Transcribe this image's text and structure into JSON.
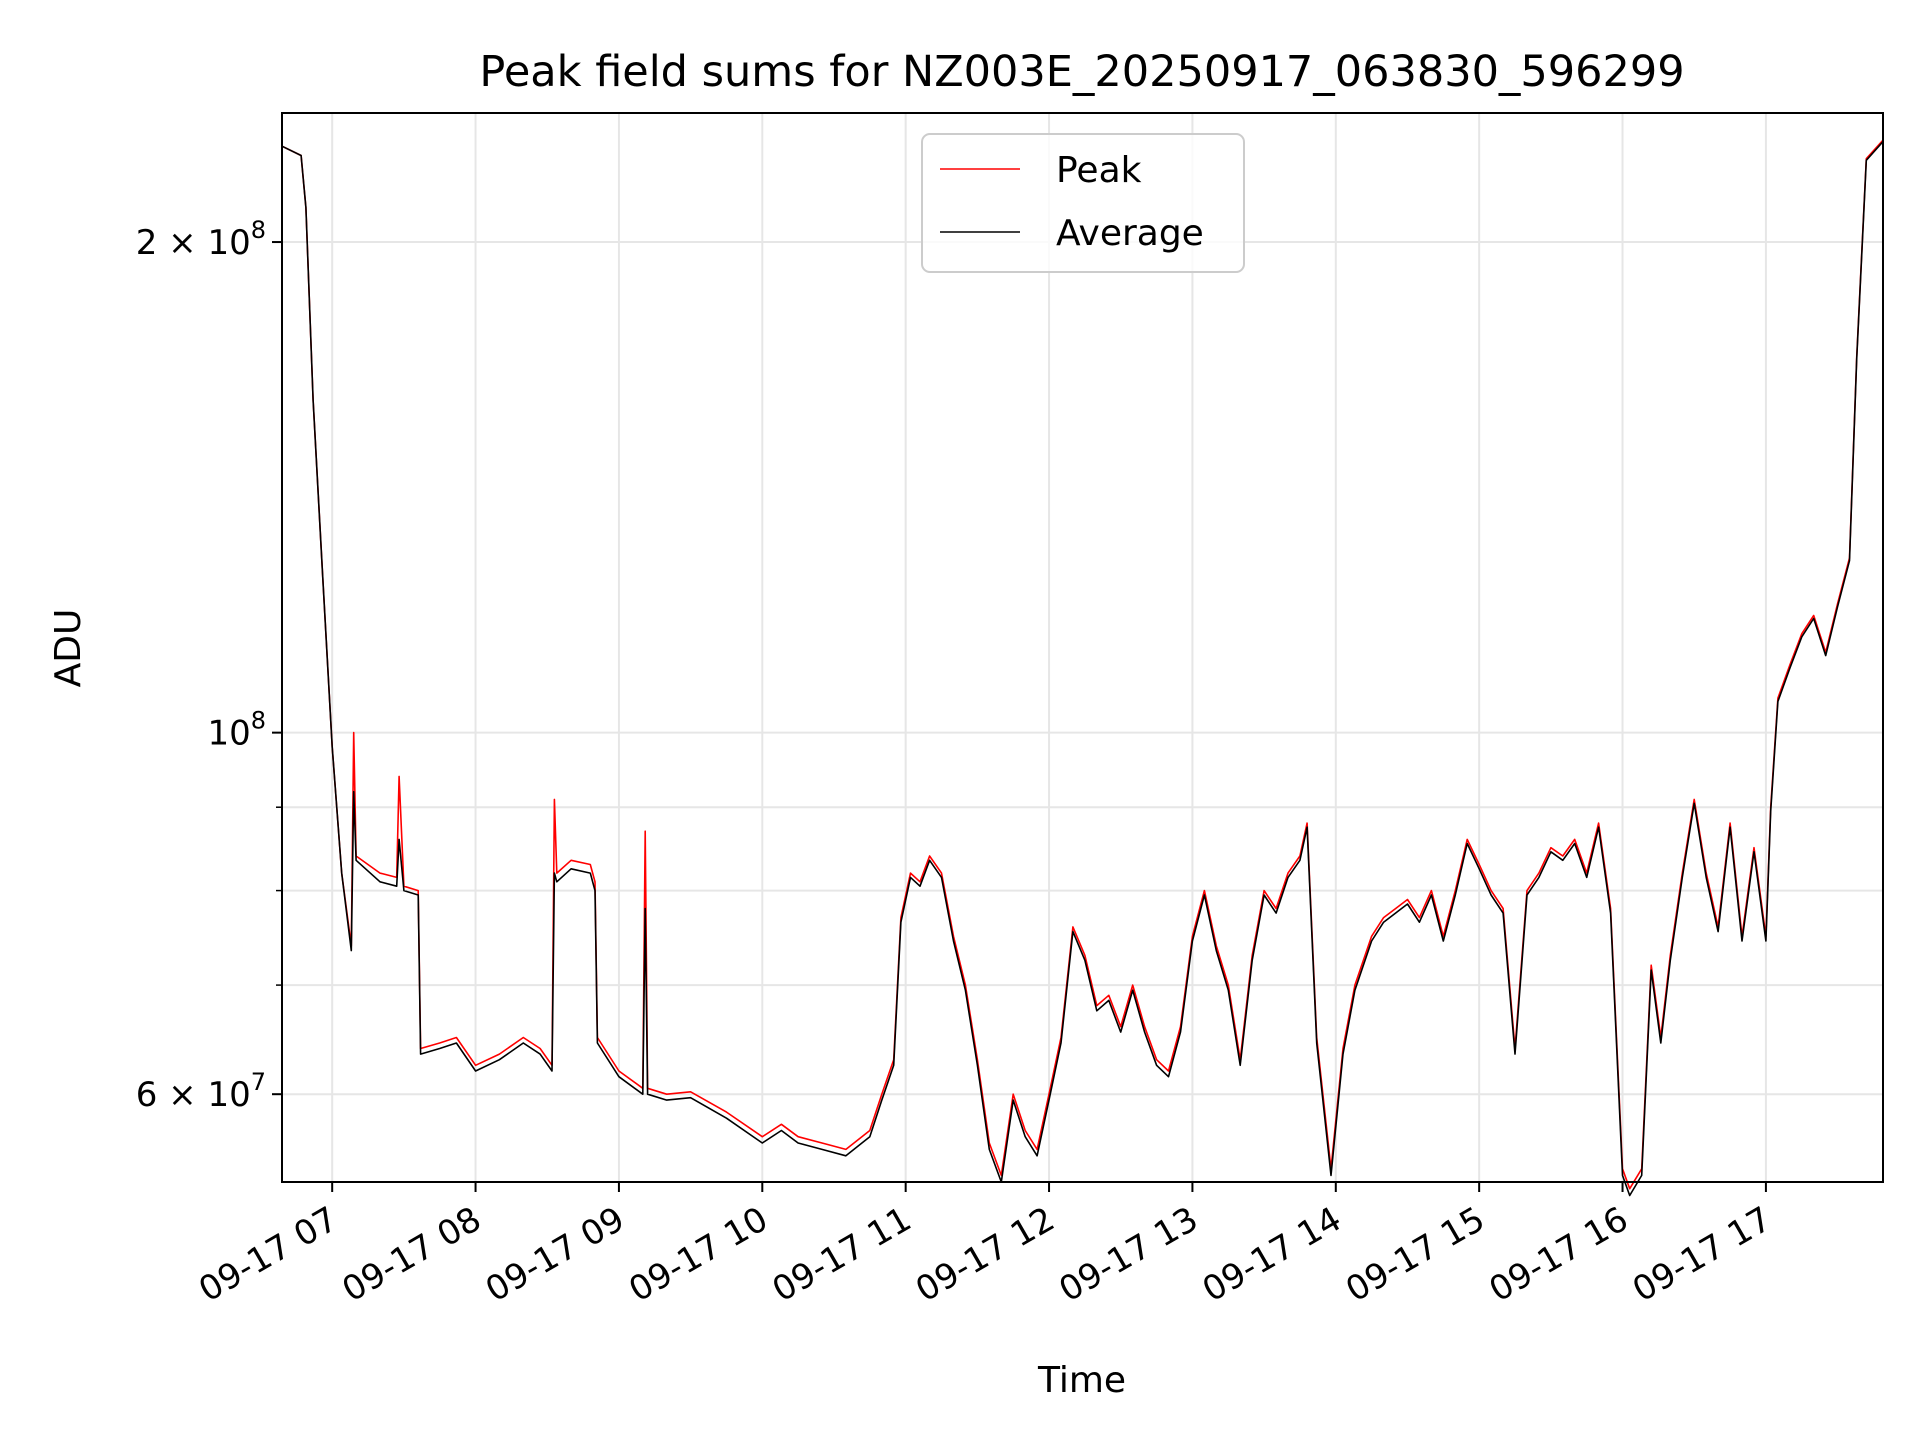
{
  "chart_data": {
    "type": "line",
    "title": "Peak field sums for NZ003E_20250917_063830_596299",
    "xlabel": "Time",
    "ylabel": "ADU",
    "yscale": "log",
    "ylim": [
      53000000,
      240000000
    ],
    "xlim": [
      "2025-09-17T06:39",
      "2025-09-17T17:49"
    ],
    "grid": true,
    "legend_position": "upper center",
    "x_ticks": [
      {
        "time": "2025-09-17T07:00",
        "label": "09-17 07"
      },
      {
        "time": "2025-09-17T08:00",
        "label": "09-17 08"
      },
      {
        "time": "2025-09-17T09:00",
        "label": "09-17 09"
      },
      {
        "time": "2025-09-17T10:00",
        "label": "09-17 10"
      },
      {
        "time": "2025-09-17T11:00",
        "label": "09-17 11"
      },
      {
        "time": "2025-09-17T12:00",
        "label": "09-17 12"
      },
      {
        "time": "2025-09-17T13:00",
        "label": "09-17 13"
      },
      {
        "time": "2025-09-17T14:00",
        "label": "09-17 14"
      },
      {
        "time": "2025-09-17T15:00",
        "label": "09-17 15"
      },
      {
        "time": "2025-09-17T16:00",
        "label": "09-17 16"
      },
      {
        "time": "2025-09-17T17:00",
        "label": "09-17 17"
      }
    ],
    "y_ticks": [
      {
        "value": 60000000,
        "base": "6 × 10",
        "exp": "7"
      },
      {
        "value": 100000000,
        "base": "10",
        "exp": "8"
      },
      {
        "value": 200000000,
        "base": "2 × 10",
        "exp": "8"
      }
    ],
    "y_minor_ticks": [
      70000000,
      80000000,
      90000000
    ],
    "series": [
      {
        "name": "Peak",
        "color": "#ff0000",
        "points": [
          [
            "06:39",
            229000000
          ],
          [
            "06:47",
            226000000
          ],
          [
            "06:49",
            210000000
          ],
          [
            "06:52",
            160000000
          ],
          [
            "06:56",
            125000000
          ],
          [
            "07:00",
            98000000
          ],
          [
            "07:04",
            82000000
          ],
          [
            "07:08",
            74000000
          ],
          [
            "07:09",
            100000000
          ],
          [
            "07:10",
            84000000
          ],
          [
            "07:20",
            82000000
          ],
          [
            "07:27",
            81500000
          ],
          [
            "07:28",
            94000000
          ],
          [
            "07:30",
            80500000
          ],
          [
            "07:36",
            80000000
          ],
          [
            "07:37",
            64000000
          ],
          [
            "07:45",
            64500000
          ],
          [
            "07:52",
            65000000
          ],
          [
            "08:00",
            62500000
          ],
          [
            "08:10",
            63500000
          ],
          [
            "08:20",
            65000000
          ],
          [
            "08:27",
            64000000
          ],
          [
            "08:32",
            62500000
          ],
          [
            "08:33",
            91000000
          ],
          [
            "08:34",
            82000000
          ],
          [
            "08:40",
            83500000
          ],
          [
            "08:48",
            83000000
          ],
          [
            "08:50",
            81000000
          ],
          [
            "08:51",
            65000000
          ],
          [
            "09:00",
            62000000
          ],
          [
            "09:10",
            60500000
          ],
          [
            "09:11",
            87000000
          ],
          [
            "09:12",
            60500000
          ],
          [
            "09:20",
            60000000
          ],
          [
            "09:30",
            60200000
          ],
          [
            "09:45",
            58500000
          ],
          [
            "10:00",
            56500000
          ],
          [
            "10:08",
            57500000
          ],
          [
            "10:15",
            56500000
          ],
          [
            "10:25",
            56000000
          ],
          [
            "10:35",
            55500000
          ],
          [
            "10:45",
            57000000
          ],
          [
            "10:50",
            60000000
          ],
          [
            "10:55",
            63000000
          ],
          [
            "10:58",
            77000000
          ],
          [
            "11:02",
            82000000
          ],
          [
            "11:06",
            81000000
          ],
          [
            "11:10",
            84000000
          ],
          [
            "11:15",
            82000000
          ],
          [
            "11:20",
            75000000
          ],
          [
            "11:25",
            70000000
          ],
          [
            "11:30",
            63000000
          ],
          [
            "11:35",
            56000000
          ],
          [
            "11:40",
            53500000
          ],
          [
            "11:45",
            60000000
          ],
          [
            "11:50",
            57000000
          ],
          [
            "11:55",
            55500000
          ],
          [
            "12:00",
            60000000
          ],
          [
            "12:05",
            65000000
          ],
          [
            "12:10",
            76000000
          ],
          [
            "12:15",
            73000000
          ],
          [
            "12:20",
            68000000
          ],
          [
            "12:25",
            69000000
          ],
          [
            "12:30",
            66000000
          ],
          [
            "12:35",
            70000000
          ],
          [
            "12:40",
            66000000
          ],
          [
            "12:45",
            63000000
          ],
          [
            "12:50",
            62000000
          ],
          [
            "12:55",
            66000000
          ],
          [
            "13:00",
            75000000
          ],
          [
            "13:05",
            80000000
          ],
          [
            "13:10",
            74000000
          ],
          [
            "13:15",
            70000000
          ],
          [
            "13:20",
            63000000
          ],
          [
            "13:25",
            73000000
          ],
          [
            "13:30",
            80000000
          ],
          [
            "13:35",
            78000000
          ],
          [
            "13:40",
            82000000
          ],
          [
            "13:45",
            84000000
          ],
          [
            "13:48",
            88000000
          ],
          [
            "13:52",
            65000000
          ],
          [
            "13:58",
            54000000
          ],
          [
            "14:03",
            64000000
          ],
          [
            "14:08",
            70000000
          ],
          [
            "14:15",
            75000000
          ],
          [
            "14:20",
            77000000
          ],
          [
            "14:30",
            79000000
          ],
          [
            "14:35",
            77000000
          ],
          [
            "14:40",
            80000000
          ],
          [
            "14:45",
            75000000
          ],
          [
            "14:50",
            80000000
          ],
          [
            "14:55",
            86000000
          ],
          [
            "15:00",
            83000000
          ],
          [
            "15:05",
            80000000
          ],
          [
            "15:10",
            78000000
          ],
          [
            "15:15",
            64000000
          ],
          [
            "15:20",
            80000000
          ],
          [
            "15:25",
            82000000
          ],
          [
            "15:30",
            85000000
          ],
          [
            "15:35",
            84000000
          ],
          [
            "15:40",
            86000000
          ],
          [
            "15:45",
            82000000
          ],
          [
            "15:50",
            88000000
          ],
          [
            "15:55",
            78000000
          ],
          [
            "16:00",
            54000000
          ],
          [
            "16:03",
            52500000
          ],
          [
            "16:08",
            54000000
          ],
          [
            "16:12",
            72000000
          ],
          [
            "16:16",
            65000000
          ],
          [
            "16:20",
            73000000
          ],
          [
            "16:25",
            82000000
          ],
          [
            "16:30",
            91000000
          ],
          [
            "16:35",
            82000000
          ],
          [
            "16:40",
            76000000
          ],
          [
            "16:45",
            88000000
          ],
          [
            "16:50",
            75000000
          ],
          [
            "16:55",
            85000000
          ],
          [
            "17:00",
            75000000
          ],
          [
            "17:02",
            90000000
          ],
          [
            "17:05",
            105000000
          ],
          [
            "17:10",
            110000000
          ],
          [
            "17:15",
            115000000
          ],
          [
            "17:20",
            118000000
          ],
          [
            "17:25",
            112000000
          ],
          [
            "17:30",
            120000000
          ],
          [
            "17:35",
            128000000
          ],
          [
            "17:38",
            170000000
          ],
          [
            "17:42",
            225000000
          ],
          [
            "17:49",
            231000000
          ]
        ]
      },
      {
        "name": "Average",
        "color": "#000000",
        "points": [
          [
            "06:39",
            229000000
          ],
          [
            "06:47",
            226000000
          ],
          [
            "06:49",
            210000000
          ],
          [
            "06:52",
            160000000
          ],
          [
            "06:56",
            125000000
          ],
          [
            "07:00",
            98000000
          ],
          [
            "07:04",
            82000000
          ],
          [
            "07:08",
            73500000
          ],
          [
            "07:09",
            92000000
          ],
          [
            "07:10",
            83500000
          ],
          [
            "07:20",
            81000000
          ],
          [
            "07:27",
            80500000
          ],
          [
            "07:28",
            86000000
          ],
          [
            "07:30",
            80000000
          ],
          [
            "07:36",
            79500000
          ],
          [
            "07:37",
            63500000
          ],
          [
            "07:45",
            64000000
          ],
          [
            "07:52",
            64500000
          ],
          [
            "08:00",
            62000000
          ],
          [
            "08:10",
            63000000
          ],
          [
            "08:20",
            64500000
          ],
          [
            "08:27",
            63500000
          ],
          [
            "08:32",
            62000000
          ],
          [
            "08:33",
            82000000
          ],
          [
            "08:34",
            81000000
          ],
          [
            "08:40",
            82500000
          ],
          [
            "08:48",
            82000000
          ],
          [
            "08:50",
            80000000
          ],
          [
            "08:51",
            64500000
          ],
          [
            "09:00",
            61500000
          ],
          [
            "09:10",
            60000000
          ],
          [
            "09:11",
            78000000
          ],
          [
            "09:12",
            60000000
          ],
          [
            "09:20",
            59500000
          ],
          [
            "09:30",
            59700000
          ],
          [
            "09:45",
            58000000
          ],
          [
            "10:00",
            56000000
          ],
          [
            "10:08",
            57000000
          ],
          [
            "10:15",
            56000000
          ],
          [
            "10:25",
            55500000
          ],
          [
            "10:35",
            55000000
          ],
          [
            "10:45",
            56500000
          ],
          [
            "10:50",
            59500000
          ],
          [
            "10:55",
            62500000
          ],
          [
            "10:58",
            76500000
          ],
          [
            "11:02",
            81500000
          ],
          [
            "11:06",
            80500000
          ],
          [
            "11:10",
            83500000
          ],
          [
            "11:15",
            81500000
          ],
          [
            "11:20",
            74500000
          ],
          [
            "11:25",
            69500000
          ],
          [
            "11:30",
            62500000
          ],
          [
            "11:35",
            55500000
          ],
          [
            "11:40",
            53000000
          ],
          [
            "11:45",
            59500000
          ],
          [
            "11:50",
            56500000
          ],
          [
            "11:55",
            55000000
          ],
          [
            "12:00",
            59500000
          ],
          [
            "12:05",
            64500000
          ],
          [
            "12:10",
            75500000
          ],
          [
            "12:15",
            72500000
          ],
          [
            "12:20",
            67500000
          ],
          [
            "12:25",
            68500000
          ],
          [
            "12:30",
            65500000
          ],
          [
            "12:35",
            69500000
          ],
          [
            "12:40",
            65500000
          ],
          [
            "12:45",
            62500000
          ],
          [
            "12:50",
            61500000
          ],
          [
            "12:55",
            65500000
          ],
          [
            "13:00",
            74500000
          ],
          [
            "13:05",
            79500000
          ],
          [
            "13:10",
            73500000
          ],
          [
            "13:15",
            69500000
          ],
          [
            "13:20",
            62500000
          ],
          [
            "13:25",
            72500000
          ],
          [
            "13:30",
            79500000
          ],
          [
            "13:35",
            77500000
          ],
          [
            "13:40",
            81500000
          ],
          [
            "13:45",
            83500000
          ],
          [
            "13:48",
            87500000
          ],
          [
            "13:52",
            64500000
          ],
          [
            "13:58",
            53500000
          ],
          [
            "14:03",
            63500000
          ],
          [
            "14:08",
            69500000
          ],
          [
            "14:15",
            74500000
          ],
          [
            "14:20",
            76500000
          ],
          [
            "14:30",
            78500000
          ],
          [
            "14:35",
            76500000
          ],
          [
            "14:40",
            79500000
          ],
          [
            "14:45",
            74500000
          ],
          [
            "14:50",
            79500000
          ],
          [
            "14:55",
            85500000
          ],
          [
            "15:00",
            82500000
          ],
          [
            "15:05",
            79500000
          ],
          [
            "15:10",
            77500000
          ],
          [
            "15:15",
            63500000
          ],
          [
            "15:20",
            79500000
          ],
          [
            "15:25",
            81500000
          ],
          [
            "15:30",
            84500000
          ],
          [
            "15:35",
            83500000
          ],
          [
            "15:40",
            85500000
          ],
          [
            "15:45",
            81500000
          ],
          [
            "15:50",
            87500000
          ],
          [
            "15:55",
            77500000
          ],
          [
            "16:00",
            53500000
          ],
          [
            "16:03",
            52000000
          ],
          [
            "16:08",
            53500000
          ],
          [
            "16:12",
            71500000
          ],
          [
            "16:16",
            64500000
          ],
          [
            "16:20",
            72500000
          ],
          [
            "16:25",
            81500000
          ],
          [
            "16:30",
            90500000
          ],
          [
            "16:35",
            81500000
          ],
          [
            "16:40",
            75500000
          ],
          [
            "16:45",
            87500000
          ],
          [
            "16:50",
            74500000
          ],
          [
            "16:55",
            84500000
          ],
          [
            "17:00",
            74500000
          ],
          [
            "17:02",
            89500000
          ],
          [
            "17:05",
            104500000
          ],
          [
            "17:10",
            109500000
          ],
          [
            "17:15",
            114500000
          ],
          [
            "17:20",
            117500000
          ],
          [
            "17:25",
            111500000
          ],
          [
            "17:30",
            119500000
          ],
          [
            "17:35",
            127500000
          ],
          [
            "17:38",
            169500000
          ],
          [
            "17:42",
            224500000
          ],
          [
            "17:49",
            230500000
          ]
        ]
      }
    ]
  }
}
